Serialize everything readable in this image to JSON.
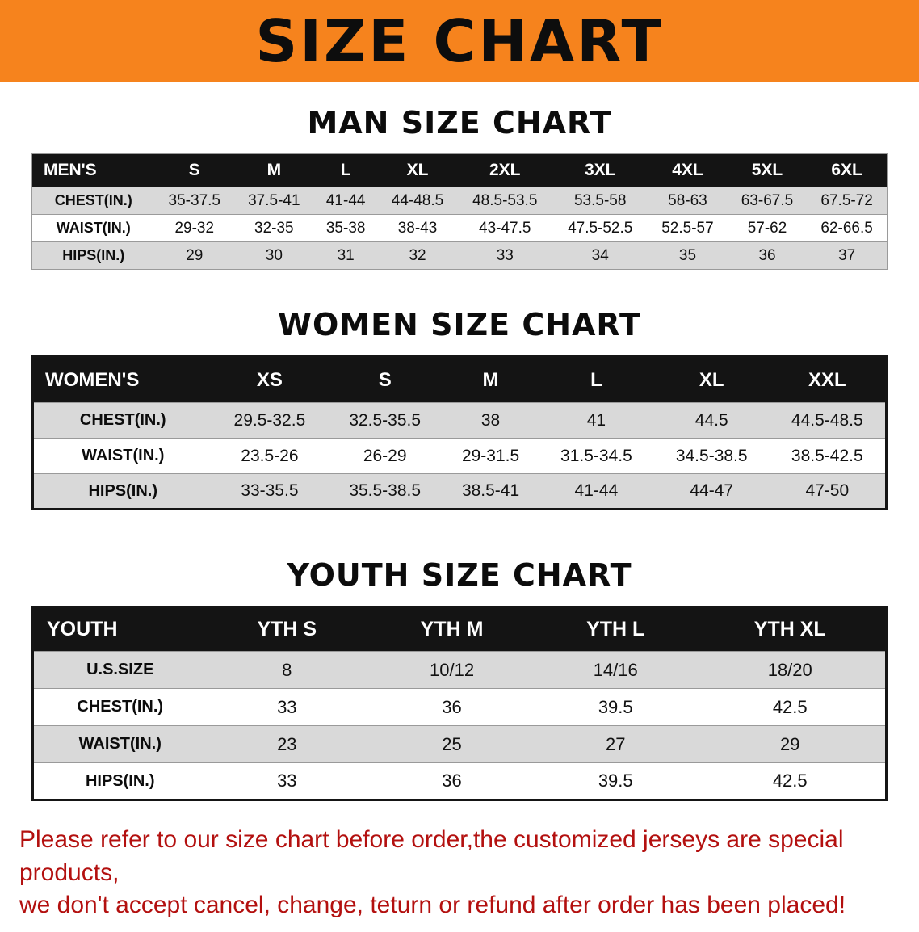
{
  "banner": {
    "title": "SIZE CHART"
  },
  "colors": {
    "banner_bg": "#F6831D",
    "header_bg": "#141414",
    "row_shaded": "#D9D9D9",
    "disclaimer_text": "#B3100F"
  },
  "sections": [
    {
      "id": "men",
      "heading": "MAN SIZE CHART",
      "table": {
        "header": [
          "MEN'S",
          "S",
          "M",
          "L",
          "XL",
          "2XL",
          "3XL",
          "4XL",
          "5XL",
          "6XL"
        ],
        "rows": [
          [
            "CHEST(IN.)",
            "35-37.5",
            "37.5-41",
            "41-44",
            "44-48.5",
            "48.5-53.5",
            "53.5-58",
            "58-63",
            "63-67.5",
            "67.5-72"
          ],
          [
            "WAIST(IN.)",
            "29-32",
            "32-35",
            "35-38",
            "38-43",
            "43-47.5",
            "47.5-52.5",
            "52.5-57",
            "57-62",
            "62-66.5"
          ],
          [
            "HIPS(IN.)",
            "29",
            "30",
            "31",
            "32",
            "33",
            "34",
            "35",
            "36",
            "37"
          ]
        ]
      }
    },
    {
      "id": "women",
      "heading": "WOMEN SIZE CHART",
      "table": {
        "header": [
          "WOMEN'S",
          "XS",
          "S",
          "M",
          "L",
          "XL",
          "XXL"
        ],
        "rows": [
          [
            "CHEST(IN.)",
            "29.5-32.5",
            "32.5-35.5",
            "38",
            "41",
            "44.5",
            "44.5-48.5"
          ],
          [
            "WAIST(IN.)",
            "23.5-26",
            "26-29",
            "29-31.5",
            "31.5-34.5",
            "34.5-38.5",
            "38.5-42.5"
          ],
          [
            "HIPS(IN.)",
            "33-35.5",
            "35.5-38.5",
            "38.5-41",
            "41-44",
            "44-47",
            "47-50"
          ]
        ]
      }
    },
    {
      "id": "youth",
      "heading": "YOUTH SIZE CHART",
      "table": {
        "header": [
          "YOUTH",
          "YTH S",
          "YTH M",
          "YTH L",
          "YTH XL"
        ],
        "rows": [
          [
            "U.S.SIZE",
            "8",
            "10/12",
            "14/16",
            "18/20"
          ],
          [
            "CHEST(IN.)",
            "33",
            "36",
            "39.5",
            "42.5"
          ],
          [
            "WAIST(IN.)",
            "23",
            "25",
            "27",
            "29"
          ],
          [
            "HIPS(IN.)",
            "33",
            "36",
            "39.5",
            "42.5"
          ]
        ]
      }
    }
  ],
  "disclaimer": {
    "line1": "Please refer to our size chart before order,the customized jerseys are special products,",
    "line2": "we don't accept cancel, change, teturn or refund after order has been placed!"
  }
}
